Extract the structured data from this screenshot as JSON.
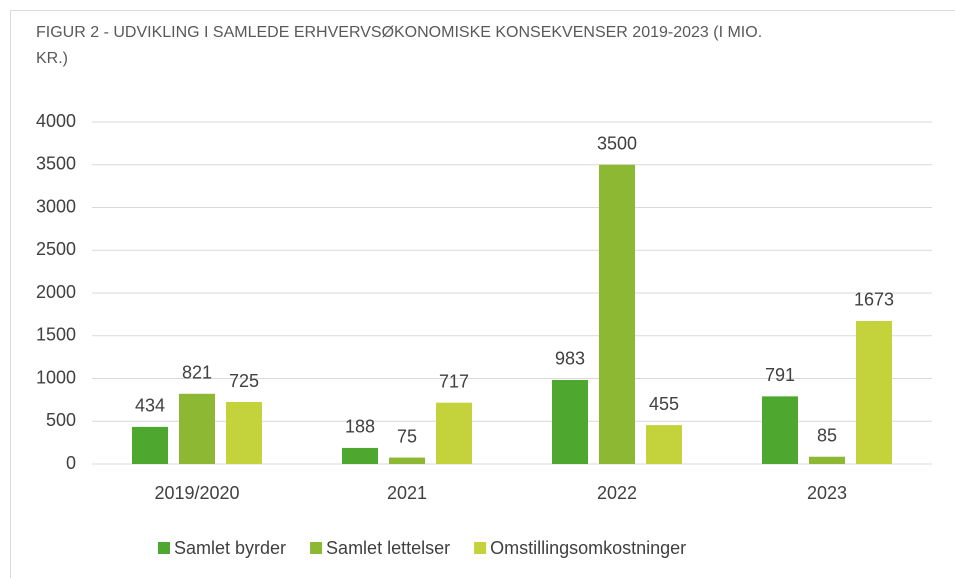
{
  "chart_data": {
    "type": "bar",
    "title": "FIGUR 2 - UDVIKLING I SAMLEDE ERHVERVSØKONOMISKE KONSEKVENSER 2019-2023 (I MIO. KR.)",
    "categories": [
      "2019/2020",
      "2021",
      "2022",
      "2023"
    ],
    "series": [
      {
        "name": "Samlet byrder",
        "color": "#4ea72e",
        "values": [
          434,
          188,
          983,
          791
        ]
      },
      {
        "name": "Samlet lettelser",
        "color": "#8cb833",
        "values": [
          821,
          75,
          3500,
          85
        ]
      },
      {
        "name": "Omstillingsomkostninger",
        "color": "#c4d23c",
        "values": [
          725,
          717,
          455,
          1673
        ]
      }
    ],
    "ylim": [
      0,
      4000
    ],
    "yticks": [
      0,
      500,
      1000,
      1500,
      2000,
      2500,
      3000,
      3500,
      4000
    ],
    "grid": true,
    "legend": "bottom"
  }
}
